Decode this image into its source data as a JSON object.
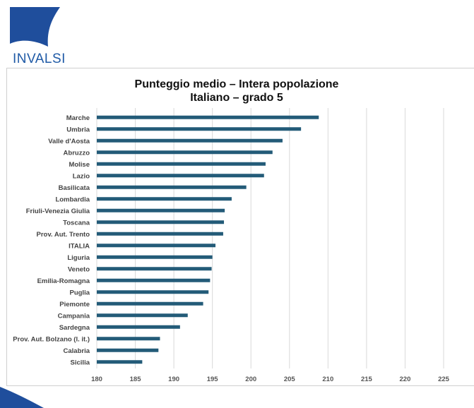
{
  "logo": {
    "text": "INVALSI"
  },
  "chart_data": {
    "type": "bar",
    "orientation": "horizontal",
    "title": "Punteggio medio – Intera popolazione",
    "subtitle": "Italiano – grado 5",
    "categories": [
      "Marche",
      "Umbria",
      "Valle d'Aosta",
      "Abruzzo",
      "Molise",
      "Lazio",
      "Basilicata",
      "Lombardia",
      "Friuli-Venezia Giulia",
      "Toscana",
      "Prov. Aut. Trento",
      "ITALIA",
      "Liguria",
      "Veneto",
      "Emilia-Romagna",
      "Puglia",
      "Piemonte",
      "Campania",
      "Sardegna",
      "Prov. Aut. Bolzano (l. it.)",
      "Calabria",
      "Sicilia"
    ],
    "values": [
      208.8,
      206.5,
      204.1,
      202.8,
      201.9,
      201.7,
      199.4,
      197.5,
      196.6,
      196.5,
      196.4,
      195.4,
      195.0,
      194.9,
      194.7,
      194.5,
      193.8,
      191.8,
      190.8,
      188.2,
      188.0,
      185.9
    ],
    "xlim": [
      180,
      225
    ],
    "xticks": [
      180,
      185,
      190,
      195,
      200,
      205,
      210,
      215,
      220,
      225
    ],
    "grid": true,
    "legend": "none",
    "bar_color": "#235b78"
  }
}
